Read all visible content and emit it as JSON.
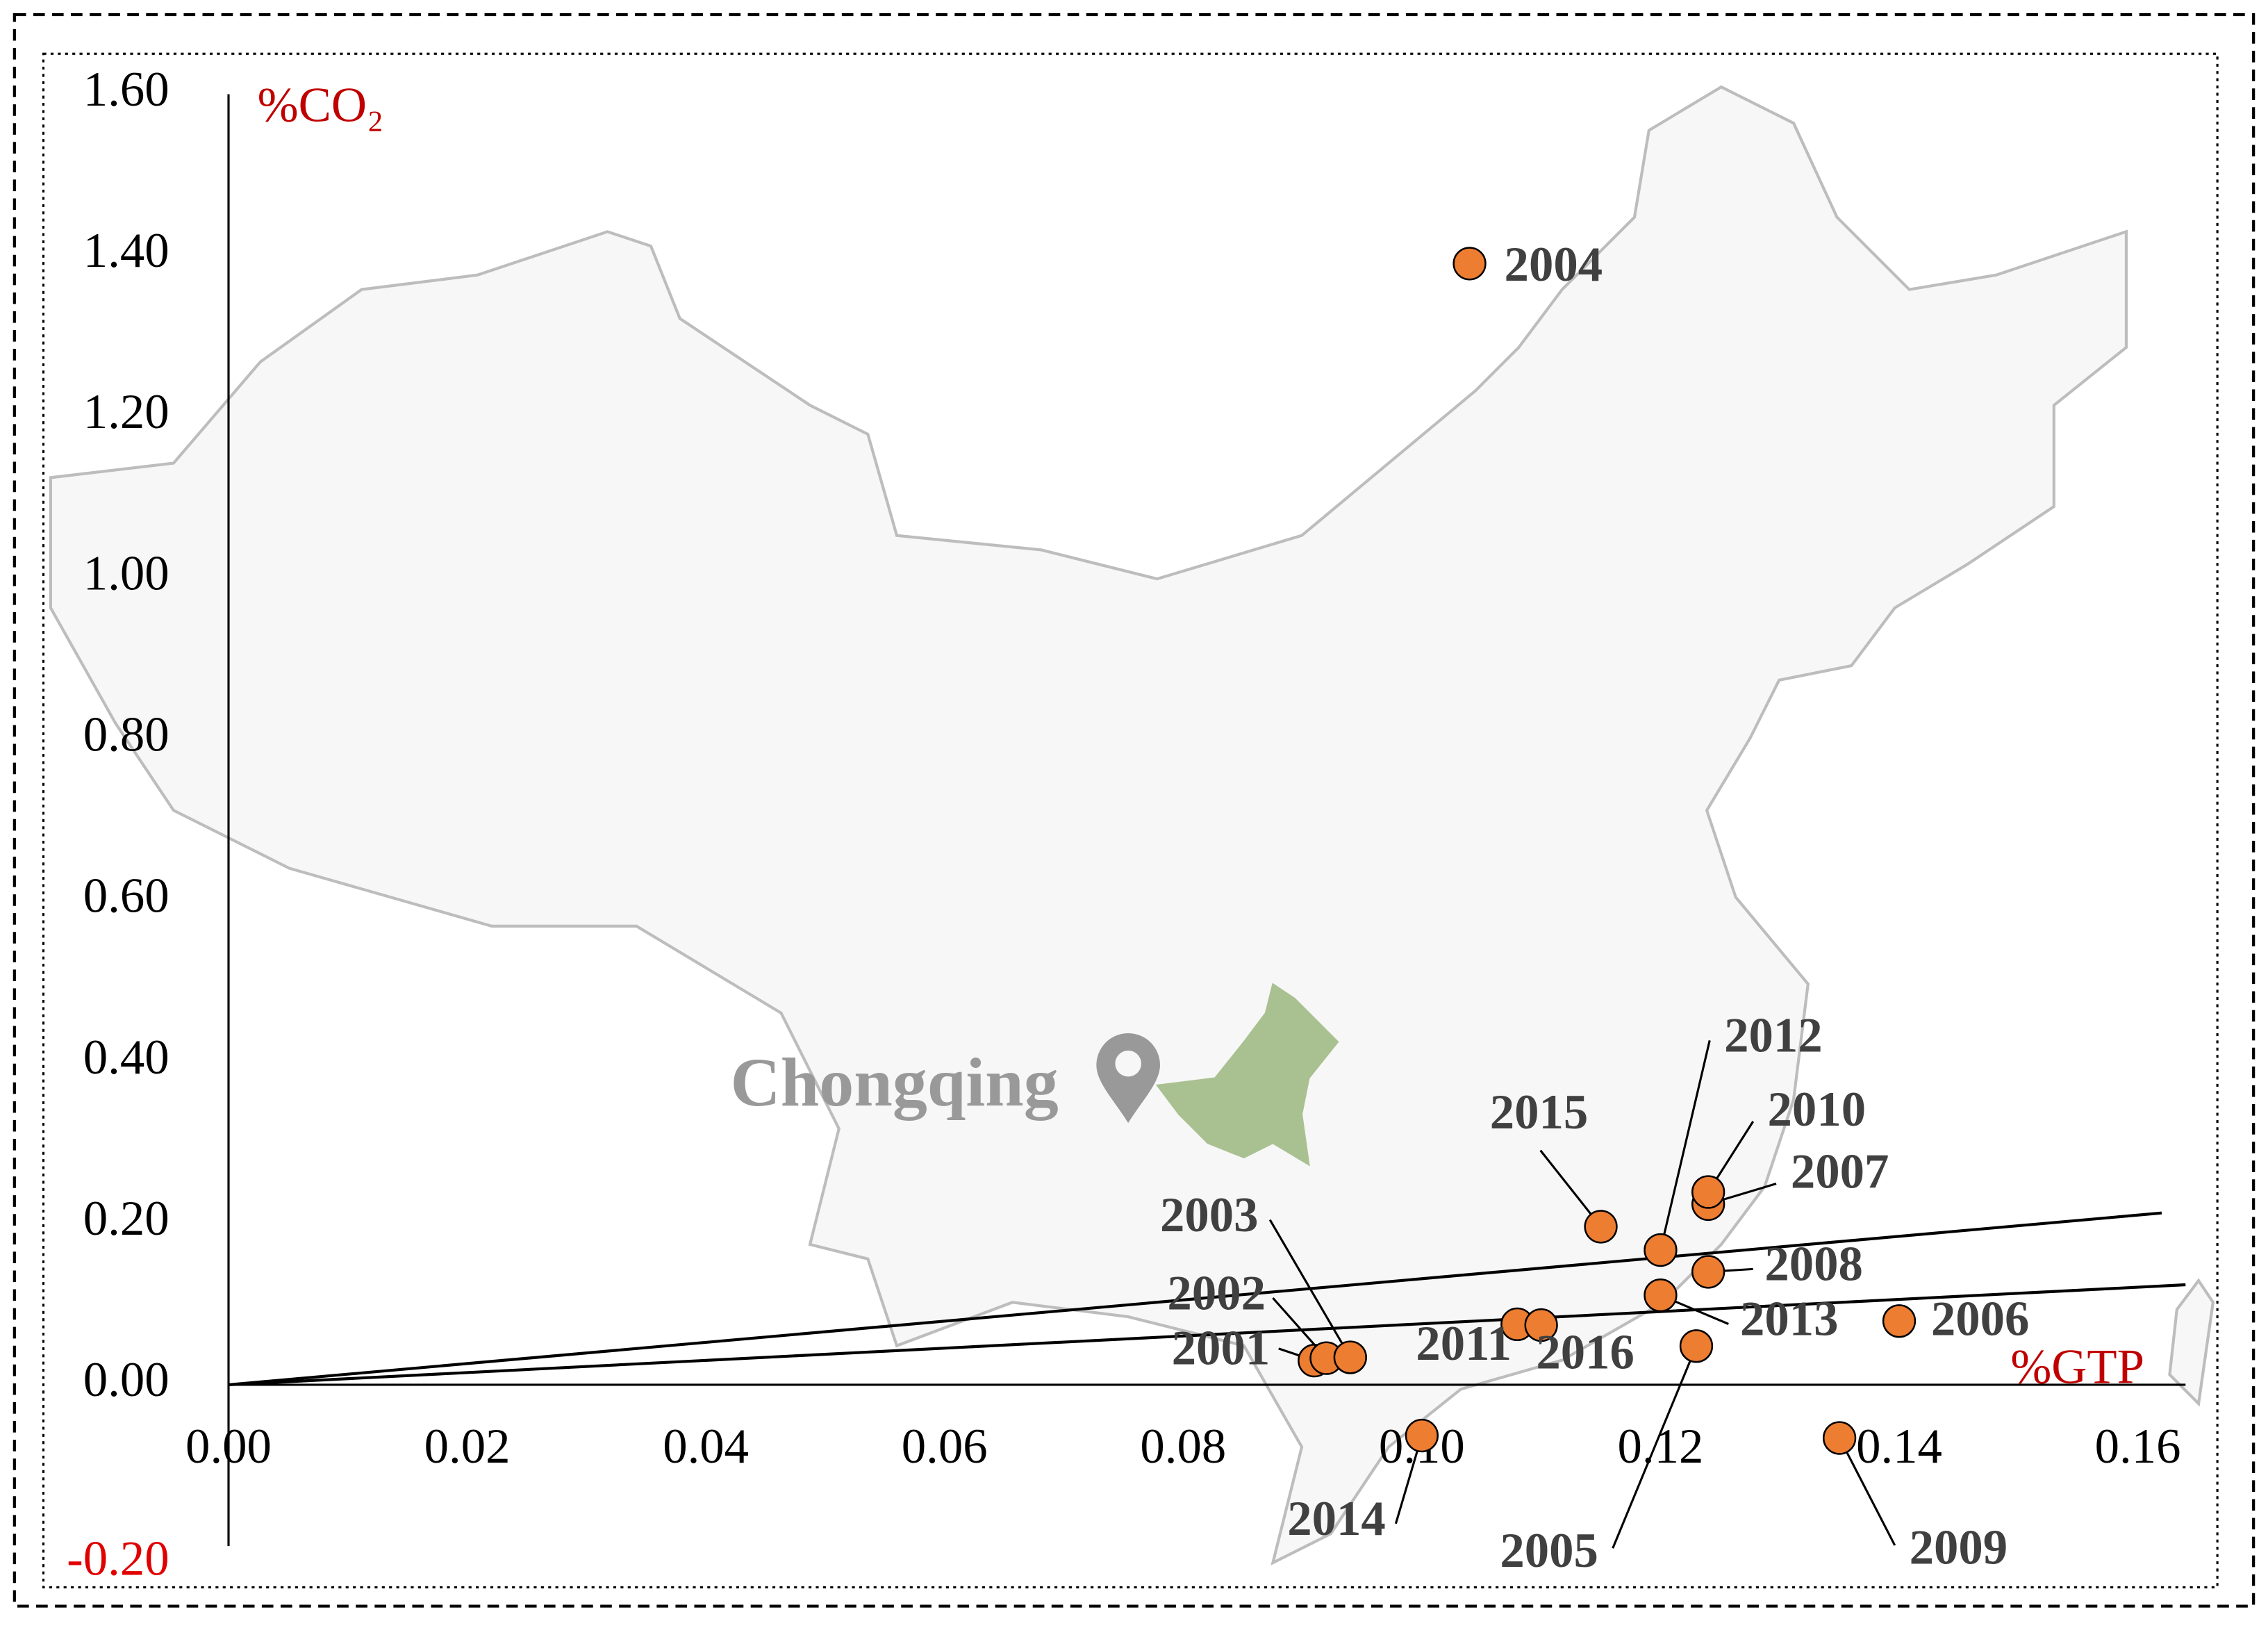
{
  "chart_data": {
    "type": "scatter",
    "annotation": "Chongqing",
    "x_label": "%GTP",
    "y_label": "%CO₂",
    "axis_label_color": "#c00000",
    "negative_tick_color": "#e00000",
    "color": "#ed7d31",
    "xlim": [
      0,
      0.164
    ],
    "ylim": [
      -0.2,
      1.6
    ],
    "xticks": [
      {
        "value": 0,
        "label": "0.00"
      },
      {
        "value": 0.02,
        "label": "0.02"
      },
      {
        "value": 0.04,
        "label": "0.04"
      },
      {
        "value": 0.06,
        "label": "0.06"
      },
      {
        "value": 0.08,
        "label": "0.08"
      },
      {
        "value": 0.1,
        "label": "0.10"
      },
      {
        "value": 0.12,
        "label": "0.12"
      },
      {
        "value": 0.14,
        "label": "0.14"
      },
      {
        "value": 0.16,
        "label": "0.16"
      }
    ],
    "yticks": [
      {
        "value": -0.2,
        "label": "-0.20"
      },
      {
        "value": 0,
        "label": "0.00"
      },
      {
        "value": 0.2,
        "label": "0.20"
      },
      {
        "value": 0.4,
        "label": "0.40"
      },
      {
        "value": 0.6,
        "label": "0.60"
      },
      {
        "value": 0.8,
        "label": "0.80"
      },
      {
        "value": 1.0,
        "label": "1.00"
      },
      {
        "value": 1.2,
        "label": "1.20"
      },
      {
        "value": 1.4,
        "label": "1.40"
      },
      {
        "value": 1.6,
        "label": "1.60"
      }
    ],
    "labels": [
      "2001",
      "2002",
      "2003",
      "2004",
      "2005",
      "2006",
      "2007",
      "2008",
      "2009",
      "2010",
      "2011",
      "2012",
      "2013",
      "2014",
      "2015",
      "2016"
    ],
    "x": [
      0.091,
      0.092,
      0.094,
      0.104,
      0.123,
      0.14,
      0.124,
      0.124,
      0.135,
      0.124,
      0.108,
      0.12,
      0.12,
      0.1,
      0.115,
      0.11
    ],
    "y": [
      0.03,
      0.033,
      0.034,
      1.39,
      0.048,
      0.079,
      0.224,
      0.14,
      -0.066,
      0.239,
      0.075,
      0.167,
      0.111,
      -0.063,
      0.196,
      0.074
    ],
    "reference_lines": [
      {
        "x": [
          0,
          0.162
        ],
        "y": [
          0,
          0.213
        ]
      },
      {
        "x": [
          0,
          0.164
        ],
        "y": [
          0,
          0.124
        ]
      }
    ]
  }
}
